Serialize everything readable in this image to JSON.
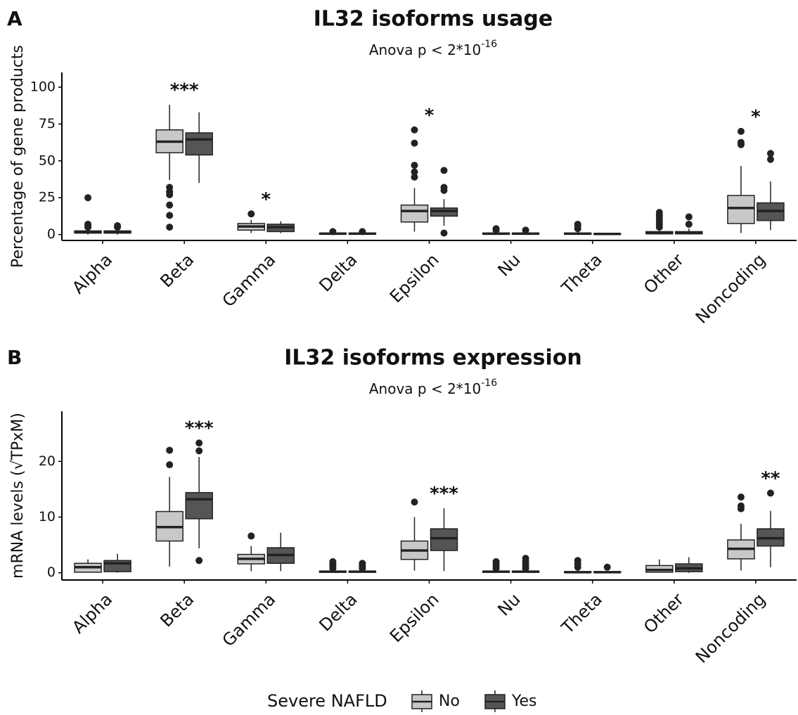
{
  "chart_data": [
    {
      "type": "box",
      "panel_label": "A",
      "title": "IL32 isoforms usage",
      "subtitle": "Anova p < 2*10",
      "subtitle_superscript": "-16",
      "y_label": "Percentage of gene products",
      "categories": [
        "Alpha",
        "Beta",
        "Gamma",
        "Delta",
        "Epsilon",
        "Nu",
        "Theta",
        "Other",
        "Noncoding"
      ],
      "ylim": [
        -4,
        110
      ],
      "yticks": [
        0,
        25,
        50,
        75,
        100
      ],
      "significance": [
        null,
        "***",
        "*",
        null,
        "*",
        null,
        null,
        null,
        "*"
      ],
      "series": [
        {
          "name": "No",
          "color": "#c8c8c8",
          "boxes": [
            {
              "low": 0,
              "q1": 1,
              "median": 1.5,
              "q3": 2.5,
              "high": 4,
              "outliers": [
                5,
                6,
                7,
                25
              ]
            },
            {
              "low": 37,
              "q1": 55.5,
              "median": 63,
              "q3": 71,
              "high": 88,
              "outliers": [
                32,
                29,
                27,
                20,
                13,
                5
              ]
            },
            {
              "low": 1,
              "q1": 3,
              "median": 5.5,
              "q3": 7.5,
              "high": 10,
              "outliers": [
                14
              ]
            },
            {
              "low": 0,
              "q1": 0.3,
              "median": 0.6,
              "q3": 1,
              "high": 1.5,
              "outliers": [
                2
              ]
            },
            {
              "low": 2,
              "q1": 8.5,
              "median": 16,
              "q3": 20,
              "high": 31.5,
              "outliers": [
                71,
                62,
                47,
                42.5,
                39
              ]
            },
            {
              "low": 0,
              "q1": 0.3,
              "median": 0.6,
              "q3": 1,
              "high": 2,
              "outliers": [
                3,
                4
              ]
            },
            {
              "low": 0,
              "q1": 0.3,
              "median": 0.6,
              "q3": 1,
              "high": 2,
              "outliers": [
                4,
                6,
                7
              ]
            },
            {
              "low": 0,
              "q1": 0.5,
              "median": 1,
              "q3": 2,
              "high": 4,
              "outliers": [
                5,
                7,
                9,
                11,
                13,
                15
              ]
            },
            {
              "low": 1,
              "q1": 7.5,
              "median": 18,
              "q3": 26.5,
              "high": 46.5,
              "outliers": [
                70,
                62.5,
                61
              ]
            }
          ]
        },
        {
          "name": "Yes",
          "color": "#555555",
          "boxes": [
            {
              "low": 0,
              "q1": 1,
              "median": 1.5,
              "q3": 2.5,
              "high": 4,
              "outliers": [
                5,
                6
              ]
            },
            {
              "low": 35,
              "q1": 54,
              "median": 64.5,
              "q3": 69,
              "high": 83,
              "outliers": []
            },
            {
              "low": 1,
              "q1": 2,
              "median": 5,
              "q3": 7,
              "high": 9,
              "outliers": []
            },
            {
              "low": 0,
              "q1": 0.3,
              "median": 0.6,
              "q3": 1,
              "high": 1.5,
              "outliers": [
                2
              ]
            },
            {
              "low": 6,
              "q1": 12.5,
              "median": 16,
              "q3": 18,
              "high": 24,
              "outliers": [
                43.5,
                32,
                30,
                1
              ]
            },
            {
              "low": 0,
              "q1": 0.3,
              "median": 0.6,
              "q3": 1,
              "high": 2,
              "outliers": [
                3
              ]
            },
            {
              "low": 0,
              "q1": 0.2,
              "median": 0.4,
              "q3": 0.6,
              "high": 1,
              "outliers": []
            },
            {
              "low": 0,
              "q1": 0.5,
              "median": 1,
              "q3": 2,
              "high": 4,
              "outliers": [
                7,
                12
              ]
            },
            {
              "low": 3,
              "q1": 9.5,
              "median": 16,
              "q3": 21.5,
              "high": 36,
              "outliers": [
                55,
                51
              ]
            }
          ]
        }
      ]
    },
    {
      "type": "box",
      "panel_label": "B",
      "title": "IL32 isoforms expression",
      "subtitle": "Anova p < 2*10",
      "subtitle_superscript": "-16",
      "y_label": "mRNA levels (√TPxM)",
      "categories": [
        "Alpha",
        "Beta",
        "Gamma",
        "Delta",
        "Epsilon",
        "Nu",
        "Theta",
        "Other",
        "Noncoding"
      ],
      "ylim": [
        -1.3,
        29
      ],
      "yticks": [
        0,
        10,
        20
      ],
      "series": [
        {
          "name": "No",
          "color": "#c8c8c8",
          "boxes": [
            {
              "low": 0,
              "q1": 0.1,
              "median": 1,
              "q3": 1.7,
              "high": 2.4,
              "outliers": []
            },
            {
              "low": 1.1,
              "q1": 5.7,
              "median": 8.2,
              "q3": 11,
              "high": 17.2,
              "outliers": [
                19.4,
                22
              ]
            },
            {
              "low": 0.3,
              "q1": 1.6,
              "median": 2.5,
              "q3": 3.3,
              "high": 4.8,
              "outliers": [
                6.6
              ]
            },
            {
              "low": 0,
              "q1": 0.1,
              "median": 0.2,
              "q3": 0.3,
              "high": 0.5,
              "outliers": [
                0.8,
                1.1,
                1.4,
                1.7,
                2
              ]
            },
            {
              "low": 0.4,
              "q1": 2.4,
              "median": 4,
              "q3": 5.7,
              "high": 10,
              "outliers": [
                12.7
              ]
            },
            {
              "low": 0,
              "q1": 0.1,
              "median": 0.2,
              "q3": 0.3,
              "high": 0.5,
              "outliers": [
                0.8,
                1.2,
                1.6,
                2
              ]
            },
            {
              "low": 0,
              "q1": 0.05,
              "median": 0.1,
              "q3": 0.2,
              "high": 0.4,
              "outliers": [
                1,
                1.6,
                2.2
              ]
            },
            {
              "low": 0,
              "q1": 0.1,
              "median": 0.5,
              "q3": 1.3,
              "high": 2.4,
              "outliers": []
            },
            {
              "low": 0.4,
              "q1": 2.5,
              "median": 4.3,
              "q3": 5.9,
              "high": 8.8,
              "outliers": [
                13.6,
                12,
                11.5
              ]
            }
          ]
        },
        {
          "name": "Yes",
          "color": "#555555",
          "significance": [
            null,
            "***",
            null,
            null,
            "***",
            null,
            null,
            null,
            "**"
          ],
          "boxes": [
            {
              "low": 0,
              "q1": 0.2,
              "median": 1.7,
              "q3": 2.2,
              "high": 3.4,
              "outliers": []
            },
            {
              "low": 4.4,
              "q1": 9.7,
              "median": 13.2,
              "q3": 14.4,
              "high": 20.8,
              "outliers": [
                23.3,
                21.9,
                2.2
              ]
            },
            {
              "low": 0.3,
              "q1": 1.7,
              "median": 3.2,
              "q3": 4.5,
              "high": 7.2,
              "outliers": []
            },
            {
              "low": 0,
              "q1": 0.1,
              "median": 0.2,
              "q3": 0.3,
              "high": 0.5,
              "outliers": [
                0.8,
                1.1,
                1.4,
                1.7
              ]
            },
            {
              "low": 0.3,
              "q1": 4,
              "median": 6.2,
              "q3": 7.9,
              "high": 11.6,
              "outliers": []
            },
            {
              "low": 0,
              "q1": 0.1,
              "median": 0.2,
              "q3": 0.3,
              "high": 0.5,
              "outliers": [
                0.8,
                1.2,
                1.6,
                2,
                2.6
              ]
            },
            {
              "low": 0,
              "q1": 0.05,
              "median": 0.1,
              "q3": 0.2,
              "high": 0.3,
              "outliers": [
                1
              ]
            },
            {
              "low": 0,
              "q1": 0.2,
              "median": 0.8,
              "q3": 1.6,
              "high": 2.8,
              "outliers": []
            },
            {
              "low": 1,
              "q1": 4.8,
              "median": 6.2,
              "q3": 7.9,
              "high": 11.1,
              "outliers": [
                14.3
              ]
            }
          ]
        }
      ]
    }
  ],
  "legend": {
    "title": "Severe NAFLD"
  }
}
